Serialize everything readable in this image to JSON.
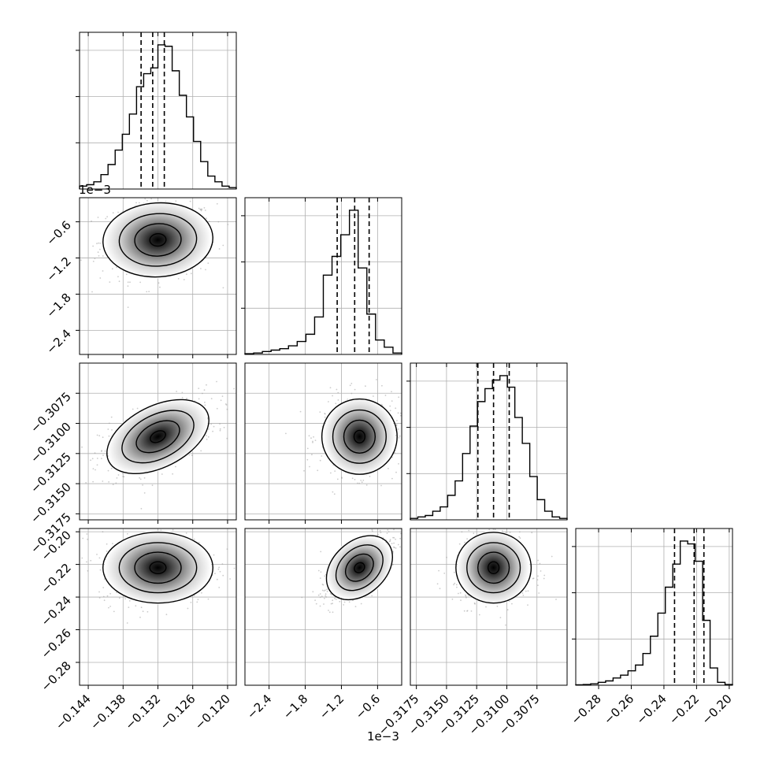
{
  "chart_data": {
    "type": "corner",
    "grid": true,
    "quantile_lines": "dashed",
    "parameters": [
      {
        "range": [
          -0.1455,
          -0.1185
        ],
        "ticks": [
          -0.144,
          -0.138,
          -0.132,
          -0.126,
          -0.12
        ],
        "tick_labels": [
          "−0.144",
          "−0.138",
          "−0.132",
          "−0.126",
          "−0.120"
        ],
        "quantiles": [
          -0.1349,
          -0.1329,
          -0.1309
        ],
        "hist": [
          0.02,
          0.03,
          0.05,
          0.1,
          0.17,
          0.27,
          0.38,
          0.52,
          0.71,
          0.8,
          0.84,
          1.0,
          0.99,
          0.82,
          0.65,
          0.5,
          0.33,
          0.19,
          0.09,
          0.05,
          0.02,
          0.01
        ],
        "center": -0.132,
        "sd": 0.004
      },
      {
        "range": [
          -2.8,
          -0.2
        ],
        "ticks": [
          -2.4,
          -1.8,
          -1.2,
          -0.6
        ],
        "tick_labels": [
          "−2.4",
          "−1.8",
          "−1.2",
          "−0.6"
        ],
        "exponent_label": "1e−3",
        "quantiles": [
          -1.27,
          -0.98,
          -0.74
        ],
        "hist": [
          0.005,
          0.01,
          0.02,
          0.03,
          0.04,
          0.06,
          0.09,
          0.14,
          0.26,
          0.55,
          0.68,
          0.83,
          1.0,
          0.6,
          0.28,
          0.1,
          0.05,
          0.01
        ],
        "center": -0.9,
        "sd": 0.26
      },
      {
        "range": [
          -0.318,
          -0.305
        ],
        "ticks": [
          -0.3175,
          -0.315,
          -0.3125,
          -0.31,
          -0.3075
        ],
        "tick_labels": [
          "−0.3175",
          "−0.3150",
          "−0.3125",
          "−0.3100",
          "−0.3075"
        ],
        "quantiles": [
          -0.3124,
          -0.3111,
          -0.3098
        ],
        "hist": [
          0.01,
          0.02,
          0.03,
          0.06,
          0.09,
          0.17,
          0.27,
          0.46,
          0.65,
          0.82,
          0.91,
          0.97,
          1.0,
          0.92,
          0.71,
          0.53,
          0.3,
          0.14,
          0.06,
          0.02,
          0.01
        ],
        "center": -0.3111,
        "sd": 0.0013
      },
      {
        "range": [
          -0.294,
          -0.198
        ],
        "ticks": [
          -0.28,
          -0.26,
          -0.24,
          -0.22,
          -0.2
        ],
        "tick_labels": [
          "−0.28",
          "−0.26",
          "−0.24",
          "−0.22",
          "−0.20"
        ],
        "quantiles": [
          -0.2335,
          -0.2215,
          -0.2155
        ],
        "hist": [
          0.003,
          0.005,
          0.01,
          0.02,
          0.03,
          0.05,
          0.07,
          0.1,
          0.14,
          0.22,
          0.34,
          0.5,
          0.68,
          0.84,
          1.0,
          0.98,
          0.86,
          0.45,
          0.12,
          0.02,
          0.005
        ],
        "center": -0.222,
        "sd": 0.009
      }
    ],
    "correlations": [
      [
        1.0,
        0.05,
        0.55,
        0.0
      ],
      [
        0.05,
        1.0,
        0.0,
        0.75
      ],
      [
        0.55,
        0.0,
        1.0,
        0.0
      ],
      [
        0.0,
        0.75,
        0.0,
        1.0
      ]
    ],
    "corner_exponent_label": "1e−3"
  }
}
